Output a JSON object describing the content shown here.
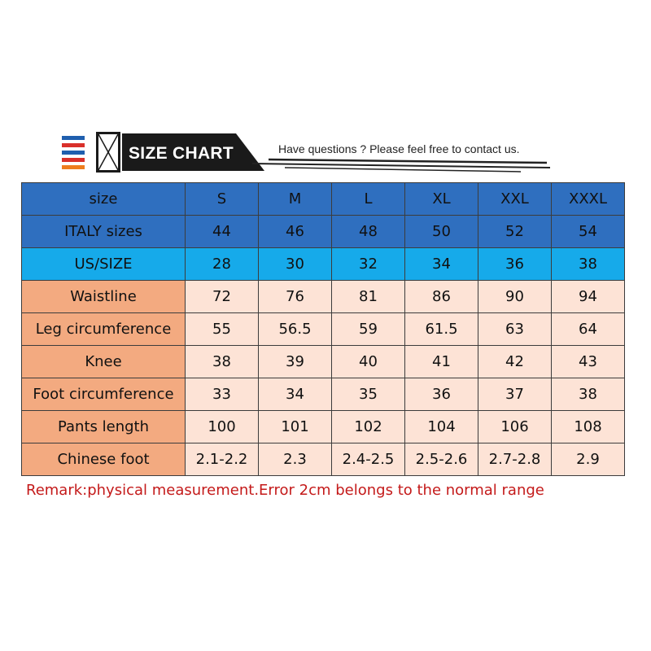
{
  "header": {
    "title": "SIZE CHART",
    "tagline": "Have questions ? Please feel free to contact us.",
    "flag_colors": [
      "#1f5fae",
      "#ffffff",
      "#d9302a",
      "#1f5fae",
      "#ee7d1e"
    ],
    "icon": "x-box-icon"
  },
  "table": {
    "header_row": {
      "label": "size",
      "values": [
        "S",
        "M",
        "L",
        "XL",
        "XXL",
        "XXXL"
      ]
    },
    "rows": [
      {
        "key": "italy",
        "label": "ITALY sizes",
        "values": [
          "44",
          "46",
          "48",
          "50",
          "52",
          "54"
        ]
      },
      {
        "key": "us",
        "label": "US/SIZE",
        "values": [
          "28",
          "30",
          "32",
          "34",
          "36",
          "38"
        ]
      },
      {
        "key": "waistline",
        "label": "Waistline",
        "values": [
          "72",
          "76",
          "81",
          "86",
          "90",
          "94"
        ]
      },
      {
        "key": "leg",
        "label": "Leg circumference",
        "values": [
          "55",
          "56.5",
          "59",
          "61.5",
          "63",
          "64"
        ]
      },
      {
        "key": "knee",
        "label": "Knee",
        "values": [
          "38",
          "39",
          "40",
          "41",
          "42",
          "43"
        ]
      },
      {
        "key": "foot",
        "label": "Foot circumference",
        "values": [
          "33",
          "34",
          "35",
          "36",
          "37",
          "38"
        ]
      },
      {
        "key": "pants",
        "label": "Pants length",
        "values": [
          "100",
          "101",
          "102",
          "104",
          "106",
          "108"
        ]
      },
      {
        "key": "chinese",
        "label": "Chinese foot",
        "values": [
          "2.1-2.2",
          "2.3",
          "2.4-2.5",
          "2.5-2.6",
          "2.7-2.8",
          "2.9"
        ]
      }
    ],
    "colors": {
      "dark_blue": "#2f6fbf",
      "light_blue": "#16aaea",
      "label_orange": "#f3aa80",
      "cell_peach": "#fde3d6"
    }
  },
  "remark": "Remark:physical measurement.Error 2cm belongs to the normal range",
  "remark_color": "#c41a1a"
}
